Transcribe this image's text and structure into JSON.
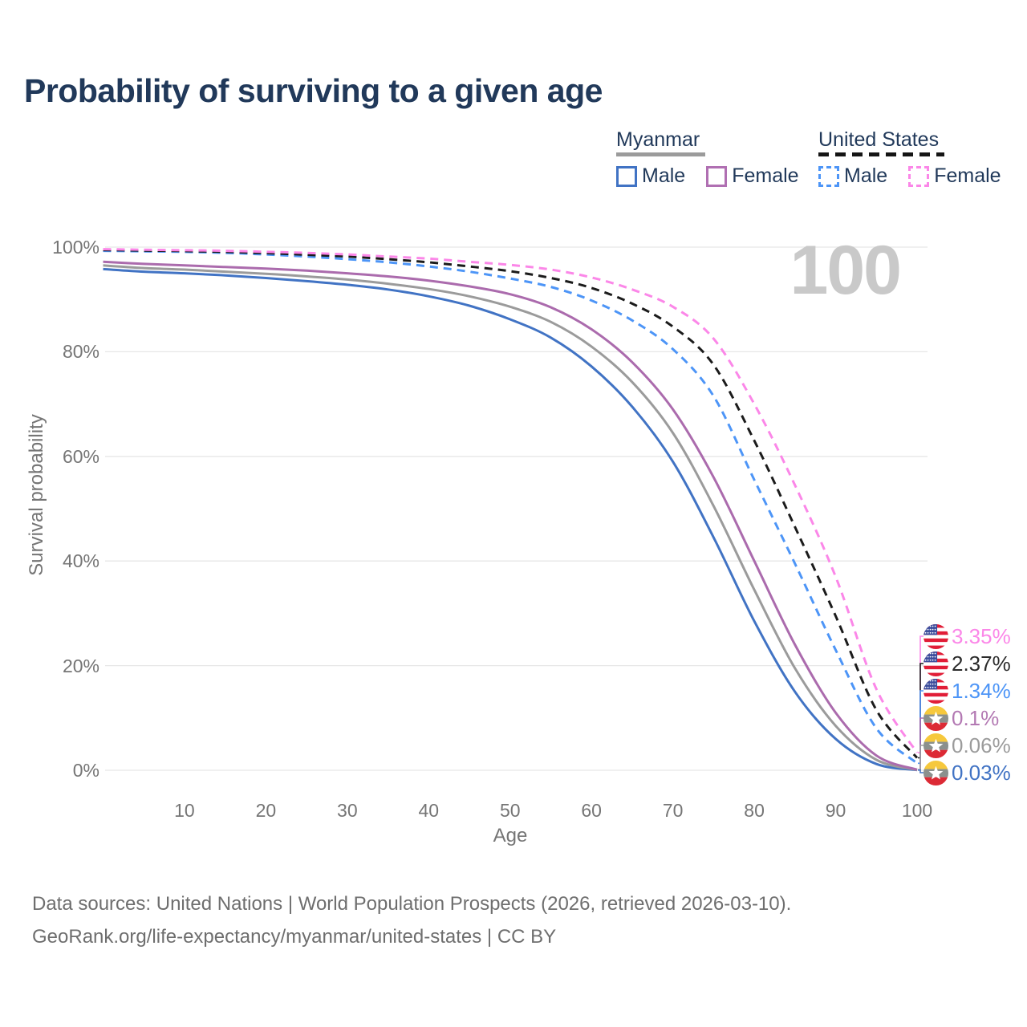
{
  "page": {
    "title": "Probability of surviving to a given age",
    "watermark": "100"
  },
  "legend": {
    "groups": [
      {
        "country": "Myanmar",
        "line_style": "solid",
        "underline_color": "#9b9b9b",
        "items": [
          {
            "label": "Male",
            "color": "#4173c4"
          },
          {
            "label": "Female",
            "color": "#b06fb2"
          }
        ]
      },
      {
        "country": "United States",
        "line_style": "dashed",
        "underline_color": "#151515",
        "items": [
          {
            "label": "Male",
            "color": "#4d95f7"
          },
          {
            "label": "Female",
            "color": "#fb87e8"
          }
        ]
      }
    ]
  },
  "chart_data": {
    "type": "line",
    "title": "Probability of surviving to a given age",
    "xlabel": "Age",
    "ylabel": "Survival probability",
    "xlim": [
      0,
      100
    ],
    "ylim": [
      0,
      100
    ],
    "grid": "horizontal",
    "x_ticks": [
      10,
      20,
      30,
      40,
      50,
      60,
      70,
      80,
      90,
      100
    ],
    "y_ticks": [
      {
        "value": 100,
        "label": "100%"
      },
      {
        "value": 80,
        "label": "80%"
      },
      {
        "value": 60,
        "label": "60%"
      },
      {
        "value": 40,
        "label": "40%"
      },
      {
        "value": 20,
        "label": "20%"
      },
      {
        "value": 0,
        "label": "0%"
      }
    ],
    "x": [
      0,
      5,
      10,
      15,
      20,
      25,
      30,
      35,
      40,
      45,
      50,
      55,
      60,
      65,
      70,
      75,
      80,
      85,
      90,
      95,
      100
    ],
    "series": [
      {
        "name": "myanmar-male",
        "country": "Myanmar",
        "sex": "Male",
        "color": "#4173c4",
        "dashed": false,
        "flag": "myanmar-flag",
        "end_label": "0.03%",
        "end_label_color": "#4173c4",
        "values": [
          95.8,
          95.3,
          95.0,
          94.6,
          94.1,
          93.5,
          92.8,
          91.9,
          90.6,
          88.8,
          86.2,
          82.7,
          77.2,
          69.5,
          59.0,
          44.5,
          28.5,
          15.0,
          6.0,
          1.2,
          0.03
        ]
      },
      {
        "name": "myanmar-both-sexes",
        "country": "Myanmar",
        "sex": "Both sexes",
        "color": "#9b9b9b",
        "dashed": false,
        "flag": "myanmar-flag",
        "end_label": "0.06%",
        "end_label_color": "#9b9b9b",
        "values": [
          96.5,
          96.0,
          95.7,
          95.3,
          94.9,
          94.4,
          93.8,
          93.0,
          92.0,
          90.6,
          88.6,
          85.7,
          81.0,
          74.2,
          64.5,
          50.5,
          34.5,
          19.5,
          8.5,
          2.0,
          0.06
        ]
      },
      {
        "name": "myanmar-female",
        "country": "Myanmar",
        "sex": "Female",
        "color": "#ab6bad",
        "dashed": false,
        "flag": "myanmar-flag",
        "end_label": "0.1%",
        "end_label_color": "#b379b3",
        "values": [
          97.2,
          96.8,
          96.5,
          96.2,
          95.9,
          95.5,
          95.0,
          94.4,
          93.6,
          92.5,
          91.0,
          88.5,
          84.3,
          78.0,
          69.0,
          56.0,
          40.0,
          24.0,
          11.0,
          2.8,
          0.1
        ]
      },
      {
        "name": "united-states-male",
        "country": "United States",
        "sex": "Male",
        "color": "#4d95f7",
        "dashed": true,
        "flag": "united-states-flag",
        "end_label": "1.34%",
        "end_label_color": "#4d95f7",
        "values": [
          99.3,
          99.2,
          99.1,
          98.9,
          98.6,
          98.2,
          97.7,
          97.1,
          96.3,
          95.3,
          94.0,
          92.4,
          89.8,
          86.0,
          80.5,
          71.5,
          55.5,
          39.5,
          23.0,
          8.0,
          1.34
        ]
      },
      {
        "name": "united-states-both-sexes",
        "country": "United States",
        "sex": "Both sexes",
        "color": "#1b1b1b",
        "dashed": true,
        "flag": "united-states-flag",
        "end_label": "2.37%",
        "end_label_color": "#2b2b2b",
        "values": [
          99.45,
          99.35,
          99.25,
          99.1,
          98.85,
          98.55,
          98.2,
          97.7,
          97.1,
          96.3,
          95.4,
          94.1,
          92.2,
          89.2,
          84.8,
          77.5,
          63.0,
          46.5,
          29.5,
          11.5,
          2.37
        ]
      },
      {
        "name": "united-states-female",
        "country": "United States",
        "sex": "Female",
        "color": "#fb87e8",
        "dashed": true,
        "flag": "united-states-flag",
        "end_label": "3.35%",
        "end_label_color": "#fb87e8",
        "values": [
          99.6,
          99.5,
          99.4,
          99.3,
          99.1,
          98.9,
          98.6,
          98.2,
          97.8,
          97.2,
          96.6,
          95.7,
          94.2,
          91.9,
          88.6,
          82.5,
          70.0,
          54.5,
          37.0,
          15.5,
          3.35
        ]
      }
    ],
    "annotations": {
      "watermark": "100"
    }
  },
  "flags": {
    "united_states": {
      "stripe_red": "#e11d37",
      "canton_blue": "#3d4e9d",
      "white": "#ffffff"
    },
    "myanmar": {
      "yellow": "#f6c83c",
      "gray": "#8b908d",
      "red": "#dc2a35",
      "star_white": "#ffffff"
    }
  },
  "footer": {
    "line1": "Data sources: United Nations | World Population Prospects (2026, retrieved 2026-03-10).",
    "line2": "GeoRank.org/life-expectancy/myanmar/united-states | CC BY"
  }
}
